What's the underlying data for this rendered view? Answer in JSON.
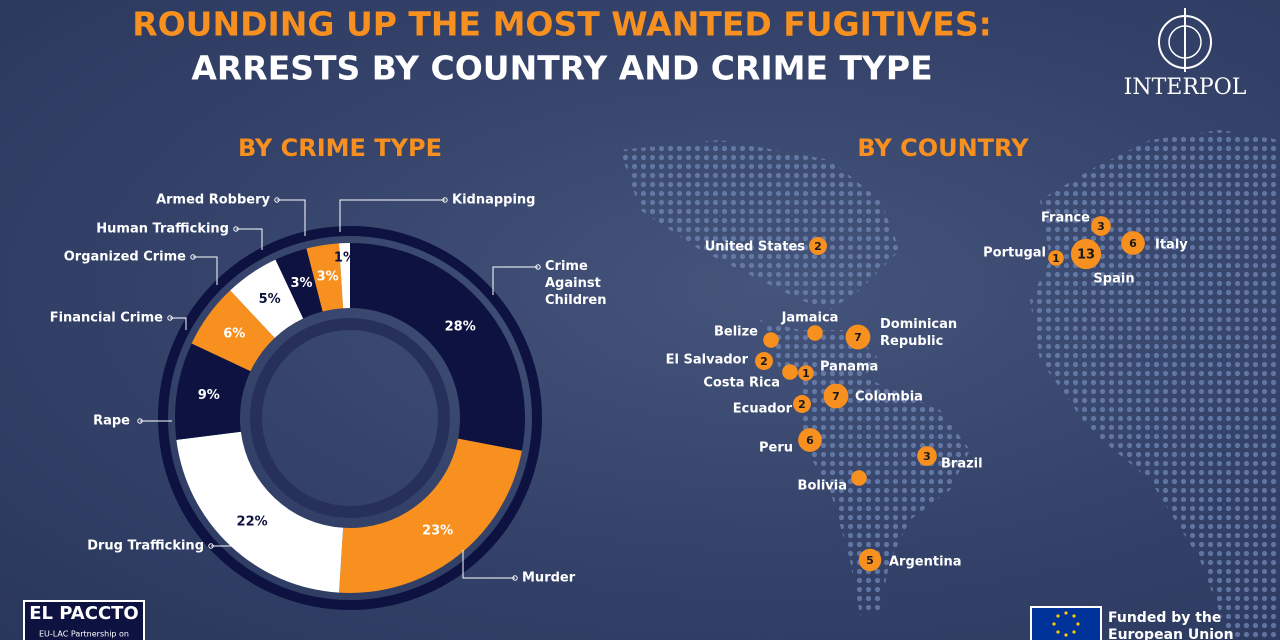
{
  "header": {
    "title": "ROUNDING UP THE MOST WANTED FUGITIVES:",
    "subtitle": "ARRESTS BY COUNTRY AND CRIME TYPE",
    "logo": "INTERPOL"
  },
  "chart_data": [
    {
      "type": "donut",
      "title": "BY CRIME TYPE",
      "categories": [
        "Crime Against Children",
        "Murder",
        "Drug Trafficking",
        "Rape",
        "Financial Crime",
        "Organized Crime",
        "Human Trafficking",
        "Armed Robbery",
        "Kidnapping"
      ],
      "values": [
        28,
        23,
        22,
        9,
        6,
        5,
        3,
        3,
        1
      ],
      "value_labels": [
        "28%",
        "23%",
        "22%",
        "9%",
        "6%",
        "5%",
        "3%",
        "3%",
        "1%"
      ],
      "colors": [
        "#0d1240",
        "#f7901e",
        "#ffffff",
        "#0d1240",
        "#f7901e",
        "#ffffff",
        "#0d1240",
        "#f7901e",
        "#ffffff"
      ]
    },
    {
      "type": "bubble-map",
      "title": "BY COUNTRY",
      "categories": [
        "United States",
        "France",
        "Portugal",
        "Spain",
        "Italy",
        "Jamaica",
        "Belize",
        "Dominican Republic",
        "El Salvador",
        "Panama",
        "Costa Rica",
        "Colombia",
        "Ecuador",
        "Peru",
        "Brazil",
        "Bolivia",
        "Argentina"
      ],
      "values": [
        2,
        3,
        1,
        13,
        6,
        1,
        1,
        7,
        2,
        1,
        1,
        7,
        2,
        6,
        3,
        1,
        5
      ],
      "value_labels": [
        "2",
        "3",
        "1",
        "13",
        "6",
        null,
        null,
        "7",
        "2",
        "1",
        null,
        "7",
        "2",
        "6",
        "3",
        null,
        "5"
      ],
      "color": "#f7901e"
    }
  ],
  "footer": {
    "left_logo": "EL PACCTO",
    "left_caption": "EU-LAC Partnership on",
    "right_caption": "Funded by the European Union"
  }
}
